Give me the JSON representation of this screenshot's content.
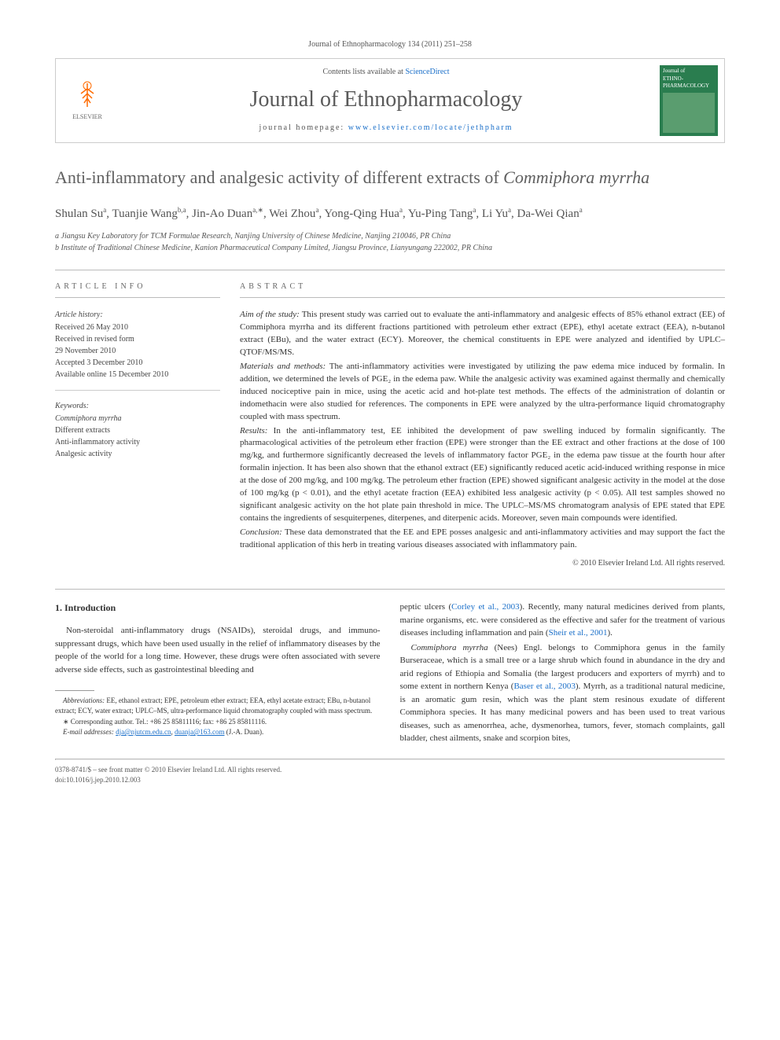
{
  "journal_header": "Journal of Ethnopharmacology 134 (2011) 251–258",
  "contents_prefix": "Contents lists available at ",
  "contents_link": "ScienceDirect",
  "journal_title": "Journal of Ethnopharmacology",
  "homepage_prefix": "journal homepage: ",
  "homepage_url": "www.elsevier.com/locate/jethpharm",
  "elsevier_label": "ELSEVIER",
  "cover": {
    "line1": "Journal of",
    "line2": "ETHNO-",
    "line3": "PHARMACOLOGY"
  },
  "title_part1": "Anti-inflammatory and analgesic activity of different extracts of ",
  "title_italic": "Commiphora myrrha",
  "authors_html": "Shulan Su<sup>a</sup>, Tuanjie Wang<sup>b,a</sup>, Jin-Ao Duan<sup>a,∗</sup>, Wei Zhou<sup>a</sup>, Yong-Qing Hua<sup>a</sup>, Yu-Ping Tang<sup>a</sup>, Li Yu<sup>a</sup>, Da-Wei Qian<sup>a</sup>",
  "affiliations": {
    "a": "a Jiangsu Key Laboratory for TCM Formulae Research, Nanjing University of Chinese Medicine, Nanjing 210046, PR China",
    "b": "b Institute of Traditional Chinese Medicine, Kanion Pharmaceutical Company Limited, Jiangsu Province, Lianyungang 222002, PR China"
  },
  "article_info": {
    "label": "ARTICLE INFO",
    "history_label": "Article history:",
    "received": "Received 26 May 2010",
    "revised1": "Received in revised form",
    "revised2": "29 November 2010",
    "accepted": "Accepted 3 December 2010",
    "online": "Available online 15 December 2010",
    "keywords_label": "Keywords:",
    "kw1": "Commiphora myrrha",
    "kw2": "Different extracts",
    "kw3": "Anti-inflammatory activity",
    "kw4": "Analgesic activity"
  },
  "abstract": {
    "label": "ABSTRACT",
    "aim_label": "Aim of the study:",
    "aim_text": " This present study was carried out to evaluate the anti-inflammatory and analgesic effects of 85% ethanol extract (EE) of Commiphora myrrha and its different fractions partitioned with petroleum ether extract (EPE), ethyl acetate extract (EEA), n-butanol extract (EBu), and the water extract (ECY). Moreover, the chemical constituents in EPE were analyzed and identified by UPLC–QTOF/MS/MS.",
    "methods_label": "Materials and methods:",
    "methods_text": " The anti-inflammatory activities were investigated by utilizing the paw edema mice induced by formalin. In addition, we determined the levels of PGE₂ in the edema paw. While the analgesic activity was examined against thermally and chemically induced nociceptive pain in mice, using the acetic acid and hot-plate test methods. The effects of the administration of dolantin or indomethacin were also studied for references. The components in EPE were analyzed by the ultra-performance liquid chromatography coupled with mass spectrum.",
    "results_label": "Results:",
    "results_text": " In the anti-inflammatory test, EE inhibited the development of paw swelling induced by formalin significantly. The pharmacological activities of the petroleum ether fraction (EPE) were stronger than the EE extract and other fractions at the dose of 100 mg/kg, and furthermore significantly decreased the levels of inflammatory factor PGE₂ in the edema paw tissue at the fourth hour after formalin injection. It has been also shown that the ethanol extract (EE) significantly reduced acetic acid-induced writhing response in mice at the dose of 200 mg/kg, and 100 mg/kg. The petroleum ether fraction (EPE) showed significant analgesic activity in the model at the dose of 100 mg/kg (p < 0.01), and the ethyl acetate fraction (EEA) exhibited less analgesic activity (p < 0.05). All test samples showed no significant analgesic activity on the hot plate pain threshold in mice. The UPLC–MS/MS chromatogram analysis of EPE stated that EPE contains the ingredients of sesquiterpenes, diterpenes, and diterpenic acids. Moreover, seven main compounds were identified.",
    "conclusion_label": "Conclusion:",
    "conclusion_text": " These data demonstrated that the EE and EPE posses analgesic and anti-inflammatory activities and may support the fact the traditional application of this herb in treating various diseases associated with inflammatory pain.",
    "copyright": "© 2010 Elsevier Ireland Ltd. All rights reserved."
  },
  "body": {
    "section_num": "1.",
    "section_title": "Introduction",
    "col1_p1": "Non-steroidal anti-inflammatory drugs (NSAIDs), steroidal drugs, and immuno-suppressant drugs, which have been used usually in the relief of inflammatory diseases by the people of the world for a long time. However, these drugs were often associated with severe adverse side effects, such as gastrointestinal bleeding and",
    "col2_p1a": "peptic ulcers (",
    "col2_p1_ref1": "Corley et al., 2003",
    "col2_p1b": "). Recently, many natural medicines derived from plants, marine organisms, etc. were considered as the effective and safer for the treatment of various diseases including inflammation and pain (",
    "col2_p1_ref2": "Sheir et al., 2001",
    "col2_p1c": ").",
    "col2_p2a": "Commiphora myrrha (Nees) Engl. belongs to Commiphora genus in the family Burseraceae, which is a small tree or a large shrub which found in abundance in the dry and arid regions of Ethiopia and Somalia (the largest producers and exporters of myrrh) and to some extent in northern Kenya (",
    "col2_p2_ref1": "Baser et al., 2003",
    "col2_p2b": "). Myrrh, as a traditional natural medicine, is an aromatic gum resin, which was the plant stem resinous exudate of different Commiphora species. It has many medicinal powers and has been used to treat various diseases, such as amenorrhea, ache, dysmenorhea, tumors, fever, stomach complaints, gall bladder, chest ailments, snake and scorpion bites,"
  },
  "footnotes": {
    "abbrev_label": "Abbreviations:",
    "abbrev_text": " EE, ethanol extract; EPE, petroleum ether extract; EEA, ethyl acetate extract; EBu, n-butanol extract; ECY, water extract; UPLC–MS, ultra-performance liquid chromatography coupled with mass spectrum.",
    "corr_label": "∗ Corresponding author. Tel.: +86 25 85811116; fax: +86 25 85811116.",
    "email_label": "E-mail addresses:",
    "email1": "dja@njutcm.edu.cn",
    "email_sep": ", ",
    "email2": "duanja@163.com",
    "email_name": " (J.-A. Duan)."
  },
  "footer": {
    "line1": "0378-8741/$ – see front matter © 2010 Elsevier Ireland Ltd. All rights reserved.",
    "line2": "doi:10.1016/j.jep.2010.12.003"
  }
}
